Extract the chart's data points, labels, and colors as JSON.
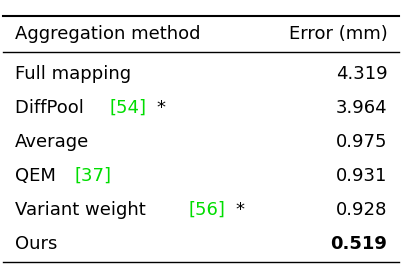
{
  "title_col1": "Aggregation method",
  "title_col2": "Error (mm)",
  "rows": [
    {
      "error": "4.319",
      "bold_error": false,
      "parts": [
        {
          "text": "Full mapping",
          "color": "#000000"
        }
      ]
    },
    {
      "error": "3.964",
      "bold_error": false,
      "parts": [
        {
          "text": "DiffPool ",
          "color": "#000000"
        },
        {
          "text": "[54]",
          "color": "#00dd00"
        },
        {
          "text": "*",
          "color": "#000000"
        }
      ]
    },
    {
      "error": "0.975",
      "bold_error": false,
      "parts": [
        {
          "text": "Average",
          "color": "#000000"
        }
      ]
    },
    {
      "error": "0.931",
      "bold_error": false,
      "parts": [
        {
          "text": "QEM ",
          "color": "#000000"
        },
        {
          "text": "[37]",
          "color": "#00dd00"
        }
      ]
    },
    {
      "error": "0.928",
      "bold_error": false,
      "parts": [
        {
          "text": "Variant weight ",
          "color": "#000000"
        },
        {
          "text": "[56]",
          "color": "#00dd00"
        },
        {
          "text": "*",
          "color": "#000000"
        }
      ]
    },
    {
      "error": "0.519",
      "bold_error": true,
      "parts": [
        {
          "text": "Ours",
          "color": "#000000"
        }
      ]
    }
  ],
  "bg_color": "#ffffff",
  "line_color": "#000000",
  "font_size": 13.0,
  "header_font_size": 13.0
}
